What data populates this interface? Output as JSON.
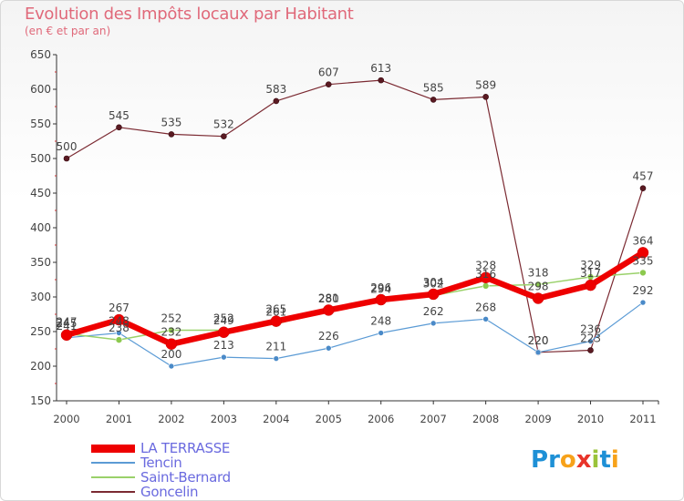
{
  "title": "Evolution des Impôts locaux par Habitant",
  "subtitle": "(en € et par an)",
  "logo": {
    "text": "Proxiti",
    "letters": [
      "P",
      "r",
      "o",
      "x",
      "i",
      "t",
      "i"
    ],
    "colors": [
      "#1e90d6",
      "#1e90d6",
      "#f7a21a",
      "#e8342a",
      "#9ac33a",
      "#1e90d6",
      "#f7a21a"
    ]
  },
  "chart_data": {
    "type": "line",
    "title": "Evolution des Impôts locaux par Habitant",
    "subtitle": "(en € et par an)",
    "xlabel": "",
    "ylabel": "",
    "ylim": [
      150,
      650
    ],
    "yticks": [
      150,
      200,
      250,
      300,
      350,
      400,
      450,
      500,
      550,
      600,
      650
    ],
    "x": [
      "2000",
      "2001",
      "2002",
      "2003",
      "2004",
      "2005",
      "2006",
      "2007",
      "2008",
      "2009",
      "2010",
      "2011"
    ],
    "series": [
      {
        "name": "Goncelin",
        "color": "#7b2a32",
        "values": [
          500,
          545,
          535,
          532,
          583,
          607,
          613,
          585,
          589,
          220,
          223,
          457
        ]
      },
      {
        "name": "Tencin",
        "color": "#5b9bd5",
        "values": [
          241,
          248,
          200,
          213,
          211,
          226,
          248,
          262,
          268,
          220,
          236,
          292
        ]
      },
      {
        "name": "Saint-Bernard",
        "color": "#9ad16a",
        "values": [
          247,
          238,
          252,
          252,
          261,
          280,
          294,
          302,
          316,
          318,
          329,
          335
        ]
      },
      {
        "name": "LA TERRASSE",
        "color": "#ee0000",
        "values": [
          245,
          267,
          232,
          249,
          265,
          281,
          296,
          304,
          328,
          298,
          317,
          364
        ]
      }
    ],
    "legend": [
      "LA TERRASSE",
      "Tencin",
      "Saint-Bernard",
      "Goncelin"
    ],
    "grid": false
  }
}
